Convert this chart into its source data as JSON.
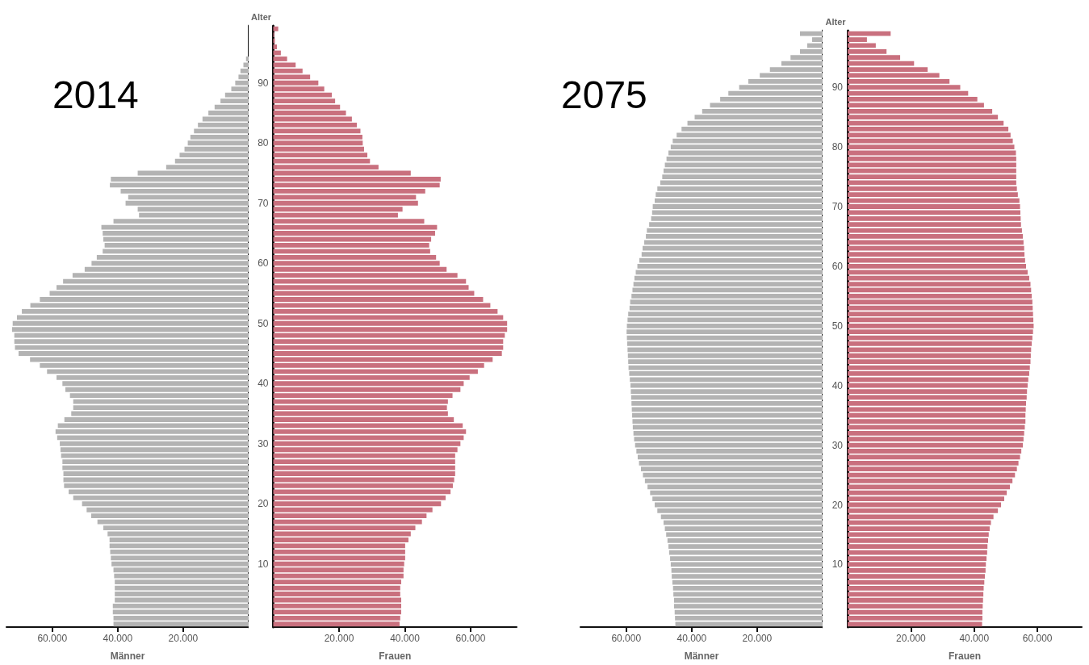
{
  "chart_data": [
    {
      "type": "bar",
      "orientation": "horizontal",
      "title": "2014",
      "xlabel": "Männer",
      "tick_labels": "x",
      "color": "#b3b3b3",
      "xlim": [
        74000,
        0
      ],
      "xticks": [
        {
          "value": 60000,
          "label": "60.000"
        },
        {
          "value": 40000,
          "label": "40.000"
        },
        {
          "value": 20000,
          "label": "20.000"
        }
      ],
      "categories": [
        null,
        null,
        null,
        null,
        null,
        null,
        null,
        null,
        null,
        "90",
        null,
        null,
        null,
        null,
        null,
        null,
        null,
        null,
        null,
        "80",
        null,
        null,
        null,
        null,
        null,
        null,
        null,
        null,
        null,
        "70",
        null,
        null,
        null,
        null,
        null,
        null,
        null,
        null,
        null,
        "60",
        null,
        null,
        null,
        null,
        null,
        null,
        null,
        null,
        null,
        "50",
        null,
        null,
        null,
        null,
        null,
        null,
        null,
        null,
        null,
        "40",
        null,
        null,
        null,
        null,
        null,
        null,
        null,
        null,
        null,
        "30",
        null,
        null,
        null,
        null,
        null,
        null,
        null,
        null,
        null,
        "20",
        null,
        null,
        null,
        null,
        null,
        null,
        null,
        null,
        null,
        "10",
        null,
        null,
        null,
        null,
        null,
        null,
        null,
        null,
        null,
        null
      ],
      "values": [
        0,
        0,
        0,
        0,
        0,
        800,
        1600,
        2500,
        3100,
        4100,
        5300,
        7200,
        8600,
        10400,
        12300,
        14100,
        15500,
        16700,
        17800,
        18600,
        19600,
        21100,
        22500,
        25200,
        33900,
        42100,
        42400,
        39100,
        36800,
        37600,
        33900,
        33500,
        41300,
        45000,
        44600,
        44400,
        44000,
        44600,
        46400,
        48000,
        50100,
        53800,
        56700,
        58700,
        60800,
        63800,
        66700,
        69300,
        70800,
        72100,
        72300,
        71600,
        71600,
        71400,
        70300,
        66800,
        63800,
        61600,
        58700,
        56900,
        56000,
        54600,
        53600,
        53600,
        54200,
        56300,
        58300,
        59000,
        58500,
        57700,
        57500,
        57300,
        56900,
        56900,
        56600,
        56600,
        56400,
        55000,
        53600,
        50900,
        49500,
        48100,
        46200,
        44400,
        43100,
        42500,
        42500,
        42300,
        42100,
        41900,
        41300,
        41100,
        40900,
        40900,
        40900,
        40900,
        41500,
        41500,
        41300,
        41300
      ]
    },
    {
      "type": "bar",
      "orientation": "horizontal",
      "xlabel": "Frauen",
      "ylabel": "Alter",
      "color": "#c9707e",
      "xlim": [
        0,
        74000
      ],
      "xticks": [
        {
          "value": 20000,
          "label": "20.000"
        },
        {
          "value": 40000,
          "label": "40.000"
        },
        {
          "value": 60000,
          "label": "60.000"
        }
      ],
      "categories": [
        null,
        null,
        null,
        null,
        null,
        null,
        null,
        null,
        null,
        "90",
        null,
        null,
        null,
        null,
        null,
        null,
        null,
        null,
        null,
        "80",
        null,
        null,
        null,
        null,
        null,
        null,
        null,
        null,
        null,
        "70",
        null,
        null,
        null,
        null,
        null,
        null,
        null,
        null,
        null,
        "60",
        null,
        null,
        null,
        null,
        null,
        null,
        null,
        null,
        null,
        "50",
        null,
        null,
        null,
        null,
        null,
        null,
        null,
        null,
        null,
        "40",
        null,
        null,
        null,
        null,
        null,
        null,
        null,
        null,
        null,
        "30",
        null,
        null,
        null,
        null,
        null,
        null,
        null,
        null,
        null,
        "20",
        null,
        null,
        null,
        null,
        null,
        null,
        null,
        null,
        null,
        "10",
        null,
        null,
        null,
        null,
        null,
        null,
        null,
        null,
        null,
        null
      ],
      "values": [
        1500,
        300,
        500,
        1100,
        2300,
        4200,
        6800,
        8900,
        11200,
        13700,
        15500,
        17800,
        18800,
        20300,
        22100,
        23900,
        25400,
        26500,
        27100,
        27200,
        27600,
        28600,
        29400,
        32000,
        41800,
        50900,
        50600,
        46200,
        43400,
        44000,
        39300,
        37900,
        45900,
        49800,
        49200,
        48000,
        47400,
        47700,
        49500,
        50600,
        52700,
        56000,
        58600,
        59400,
        61100,
        63800,
        66000,
        68200,
        69900,
        71100,
        71100,
        70400,
        69900,
        69900,
        69500,
        66700,
        64100,
        62200,
        59700,
        57900,
        56900,
        54500,
        53100,
        52800,
        53100,
        54900,
        57600,
        58600,
        57900,
        56900,
        56000,
        55300,
        55300,
        55300,
        55300,
        55000,
        54600,
        53900,
        52400,
        51000,
        48400,
        46600,
        45200,
        43200,
        41800,
        41100,
        40100,
        40100,
        40100,
        39800,
        39600,
        39600,
        38900,
        38600,
        38600,
        38900,
        38900,
        38900,
        38600,
        38400
      ]
    },
    {
      "type": "bar",
      "orientation": "horizontal",
      "title": "2075",
      "xlabel": "Männer",
      "tick_labels": "x",
      "color": "#b3b3b3",
      "xlim": [
        74000,
        0
      ],
      "xticks": [
        {
          "value": 60000,
          "label": "60.000"
        },
        {
          "value": 40000,
          "label": "40.000"
        },
        {
          "value": 20000,
          "label": "20.000"
        }
      ],
      "categories": [
        null,
        null,
        null,
        null,
        null,
        null,
        null,
        null,
        null,
        "90",
        null,
        null,
        null,
        null,
        null,
        null,
        null,
        null,
        null,
        "80",
        null,
        null,
        null,
        null,
        null,
        null,
        null,
        null,
        null,
        "70",
        null,
        null,
        null,
        null,
        null,
        null,
        null,
        null,
        null,
        "60",
        null,
        null,
        null,
        null,
        null,
        null,
        null,
        null,
        null,
        "50",
        null,
        null,
        null,
        null,
        null,
        null,
        null,
        null,
        null,
        "40",
        null,
        null,
        null,
        null,
        null,
        null,
        null,
        null,
        null,
        "30",
        null,
        null,
        null,
        null,
        null,
        null,
        null,
        null,
        null,
        "20",
        null,
        null,
        null,
        null,
        null,
        null,
        null,
        null,
        null,
        "10",
        null,
        null,
        null,
        null,
        null,
        null,
        null,
        null,
        null,
        null
      ],
      "values": [
        6900,
        3200,
        4700,
        6900,
        9800,
        12600,
        16100,
        19200,
        22700,
        25500,
        28800,
        31300,
        34400,
        36800,
        39100,
        41300,
        43100,
        44600,
        45800,
        46400,
        47100,
        47700,
        48200,
        48600,
        49000,
        49600,
        50500,
        51000,
        51300,
        51900,
        52100,
        52400,
        53000,
        53700,
        54000,
        54500,
        55000,
        55300,
        56000,
        56600,
        57100,
        57500,
        57800,
        58100,
        58400,
        58800,
        59000,
        59400,
        59600,
        59800,
        59900,
        59800,
        59700,
        59600,
        59500,
        59400,
        59300,
        59100,
        58900,
        58700,
        58600,
        58500,
        58400,
        58300,
        58200,
        58100,
        58000,
        57800,
        57600,
        57300,
        56900,
        56500,
        56100,
        55500,
        54900,
        54300,
        53500,
        52700,
        52000,
        51300,
        50500,
        49400,
        48600,
        48200,
        47800,
        47400,
        47100,
        46900,
        46600,
        46400,
        46200,
        46100,
        45900,
        45700,
        45600,
        45400,
        45400,
        45200,
        45100,
        45000
      ]
    },
    {
      "type": "bar",
      "orientation": "horizontal",
      "xlabel": "Frauen",
      "ylabel": "Alter",
      "color": "#c9707e",
      "xlim": [
        0,
        74000
      ],
      "xticks": [
        {
          "value": 20000,
          "label": "20.000"
        },
        {
          "value": 40000,
          "label": "40.000"
        },
        {
          "value": 60000,
          "label": "60.000"
        }
      ],
      "categories": [
        null,
        null,
        null,
        null,
        null,
        null,
        null,
        null,
        null,
        "90",
        null,
        null,
        null,
        null,
        null,
        null,
        null,
        null,
        null,
        "80",
        null,
        null,
        null,
        null,
        null,
        null,
        null,
        null,
        null,
        "70",
        null,
        null,
        null,
        null,
        null,
        null,
        null,
        null,
        null,
        "60",
        null,
        null,
        null,
        null,
        null,
        null,
        null,
        null,
        null,
        "50",
        null,
        null,
        null,
        null,
        null,
        null,
        null,
        null,
        null,
        "40",
        null,
        null,
        null,
        null,
        null,
        null,
        null,
        null,
        null,
        "30",
        null,
        null,
        null,
        null,
        null,
        null,
        null,
        null,
        null,
        "20",
        null,
        null,
        null,
        null,
        null,
        null,
        null,
        null,
        null,
        "10",
        null,
        null,
        null,
        null,
        null,
        null,
        null,
        null,
        null,
        null
      ],
      "values": [
        13600,
        6100,
        8900,
        12300,
        16600,
        21000,
        25300,
        29000,
        32200,
        35600,
        38100,
        41000,
        43100,
        45700,
        47500,
        49300,
        50800,
        51500,
        52200,
        52700,
        53200,
        53300,
        53300,
        53300,
        53300,
        53300,
        53500,
        53800,
        54300,
        54500,
        54600,
        54700,
        54800,
        55100,
        55400,
        55600,
        55800,
        55900,
        56100,
        56400,
        56900,
        57400,
        57800,
        58000,
        58200,
        58400,
        58500,
        58600,
        58700,
        58800,
        58600,
        58400,
        58200,
        58000,
        57900,
        57800,
        57600,
        57400,
        57100,
        56900,
        56700,
        56600,
        56400,
        56300,
        56200,
        56200,
        56000,
        55800,
        55600,
        55400,
        54900,
        54500,
        54000,
        53500,
        52900,
        52100,
        51300,
        50300,
        49500,
        48500,
        47500,
        46100,
        45300,
        44900,
        44600,
        44400,
        44200,
        44100,
        43900,
        43700,
        43600,
        43400,
        43200,
        43000,
        42900,
        42800,
        42700,
        42600,
        42600,
        42500
      ]
    }
  ]
}
